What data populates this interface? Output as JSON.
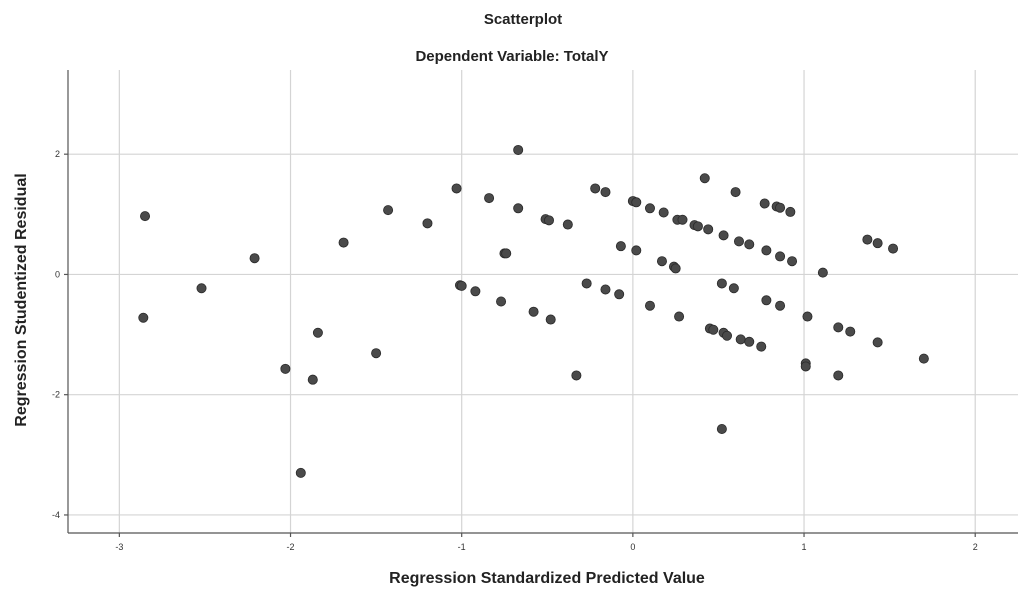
{
  "chart_data": {
    "type": "scatter",
    "title": "Scatterplot",
    "subtitle": "Dependent Variable: TotalY",
    "xlabel": "Regression Standardized Predicted Value",
    "ylabel": "Regression Studentized Residual",
    "xlim": [
      -3.3,
      2.25
    ],
    "ylim": [
      -4.3,
      3.4
    ],
    "x_ticks": [
      -3,
      -2,
      -1,
      0,
      1,
      2
    ],
    "y_ticks": [
      -4,
      -2,
      0,
      2
    ],
    "grid": true,
    "point_color": "#4a4a4a",
    "points": [
      {
        "x": -2.85,
        "y": 0.97
      },
      {
        "x": -2.86,
        "y": -0.72
      },
      {
        "x": -2.52,
        "y": -0.23
      },
      {
        "x": -2.21,
        "y": 0.27
      },
      {
        "x": -2.03,
        "y": -1.57
      },
      {
        "x": -1.94,
        "y": -3.3
      },
      {
        "x": -1.87,
        "y": -1.75
      },
      {
        "x": -1.84,
        "y": -0.97
      },
      {
        "x": -1.69,
        "y": 0.53
      },
      {
        "x": -1.5,
        "y": -1.31
      },
      {
        "x": -1.43,
        "y": 1.07
      },
      {
        "x": -1.2,
        "y": 0.85
      },
      {
        "x": -1.03,
        "y": 1.43
      },
      {
        "x": -1.01,
        "y": -0.18
      },
      {
        "x": -1.0,
        "y": -0.19
      },
      {
        "x": -0.92,
        "y": -0.28
      },
      {
        "x": -0.84,
        "y": 1.27
      },
      {
        "x": -0.77,
        "y": -0.45
      },
      {
        "x": -0.75,
        "y": 0.35
      },
      {
        "x": -0.74,
        "y": 0.35
      },
      {
        "x": -0.67,
        "y": 2.07
      },
      {
        "x": -0.67,
        "y": 1.1
      },
      {
        "x": -0.58,
        "y": -0.62
      },
      {
        "x": -0.51,
        "y": 0.92
      },
      {
        "x": -0.49,
        "y": 0.9
      },
      {
        "x": -0.48,
        "y": -0.75
      },
      {
        "x": -0.38,
        "y": 0.83
      },
      {
        "x": -0.33,
        "y": -1.68
      },
      {
        "x": -0.27,
        "y": -0.15
      },
      {
        "x": -0.22,
        "y": 1.43
      },
      {
        "x": -0.16,
        "y": 1.37
      },
      {
        "x": -0.16,
        "y": -0.25
      },
      {
        "x": -0.08,
        "y": -0.33
      },
      {
        "x": -0.07,
        "y": 0.47
      },
      {
        "x": 0.0,
        "y": 1.22
      },
      {
        "x": 0.02,
        "y": 1.2
      },
      {
        "x": 0.02,
        "y": 0.4
      },
      {
        "x": 0.1,
        "y": 1.1
      },
      {
        "x": 0.1,
        "y": -0.52
      },
      {
        "x": 0.18,
        "y": 1.03
      },
      {
        "x": 0.17,
        "y": 0.22
      },
      {
        "x": 0.24,
        "y": 0.13
      },
      {
        "x": 0.25,
        "y": 0.1
      },
      {
        "x": 0.26,
        "y": 0.91
      },
      {
        "x": 0.29,
        "y": 0.91
      },
      {
        "x": 0.27,
        "y": -0.7
      },
      {
        "x": 0.36,
        "y": 0.82
      },
      {
        "x": 0.38,
        "y": 0.8
      },
      {
        "x": 0.42,
        "y": 1.6
      },
      {
        "x": 0.44,
        "y": 0.75
      },
      {
        "x": 0.45,
        "y": -0.9
      },
      {
        "x": 0.47,
        "y": -0.92
      },
      {
        "x": 0.52,
        "y": -0.15
      },
      {
        "x": 0.53,
        "y": 0.65
      },
      {
        "x": 0.53,
        "y": -0.97
      },
      {
        "x": 0.55,
        "y": -1.02
      },
      {
        "x": 0.52,
        "y": -2.57
      },
      {
        "x": 0.59,
        "y": -0.23
      },
      {
        "x": 0.6,
        "y": 1.37
      },
      {
        "x": 0.62,
        "y": 0.55
      },
      {
        "x": 0.63,
        "y": -1.08
      },
      {
        "x": 0.68,
        "y": 0.5
      },
      {
        "x": 0.68,
        "y": -1.12
      },
      {
        "x": 0.75,
        "y": -1.2
      },
      {
        "x": 0.77,
        "y": 1.18
      },
      {
        "x": 0.78,
        "y": 0.4
      },
      {
        "x": 0.78,
        "y": -0.43
      },
      {
        "x": 0.84,
        "y": 1.13
      },
      {
        "x": 0.86,
        "y": 1.11
      },
      {
        "x": 0.86,
        "y": 0.3
      },
      {
        "x": 0.86,
        "y": -0.52
      },
      {
        "x": 0.92,
        "y": 1.04
      },
      {
        "x": 0.93,
        "y": 0.22
      },
      {
        "x": 1.01,
        "y": -1.48
      },
      {
        "x": 1.01,
        "y": -1.53
      },
      {
        "x": 1.02,
        "y": -0.7
      },
      {
        "x": 1.11,
        "y": 0.03
      },
      {
        "x": 1.2,
        "y": -0.88
      },
      {
        "x": 1.2,
        "y": -1.68
      },
      {
        "x": 1.27,
        "y": -0.95
      },
      {
        "x": 1.37,
        "y": 0.58
      },
      {
        "x": 1.43,
        "y": 0.52
      },
      {
        "x": 1.43,
        "y": -1.13
      },
      {
        "x": 1.52,
        "y": 0.43
      },
      {
        "x": 1.7,
        "y": -1.4
      }
    ]
  }
}
